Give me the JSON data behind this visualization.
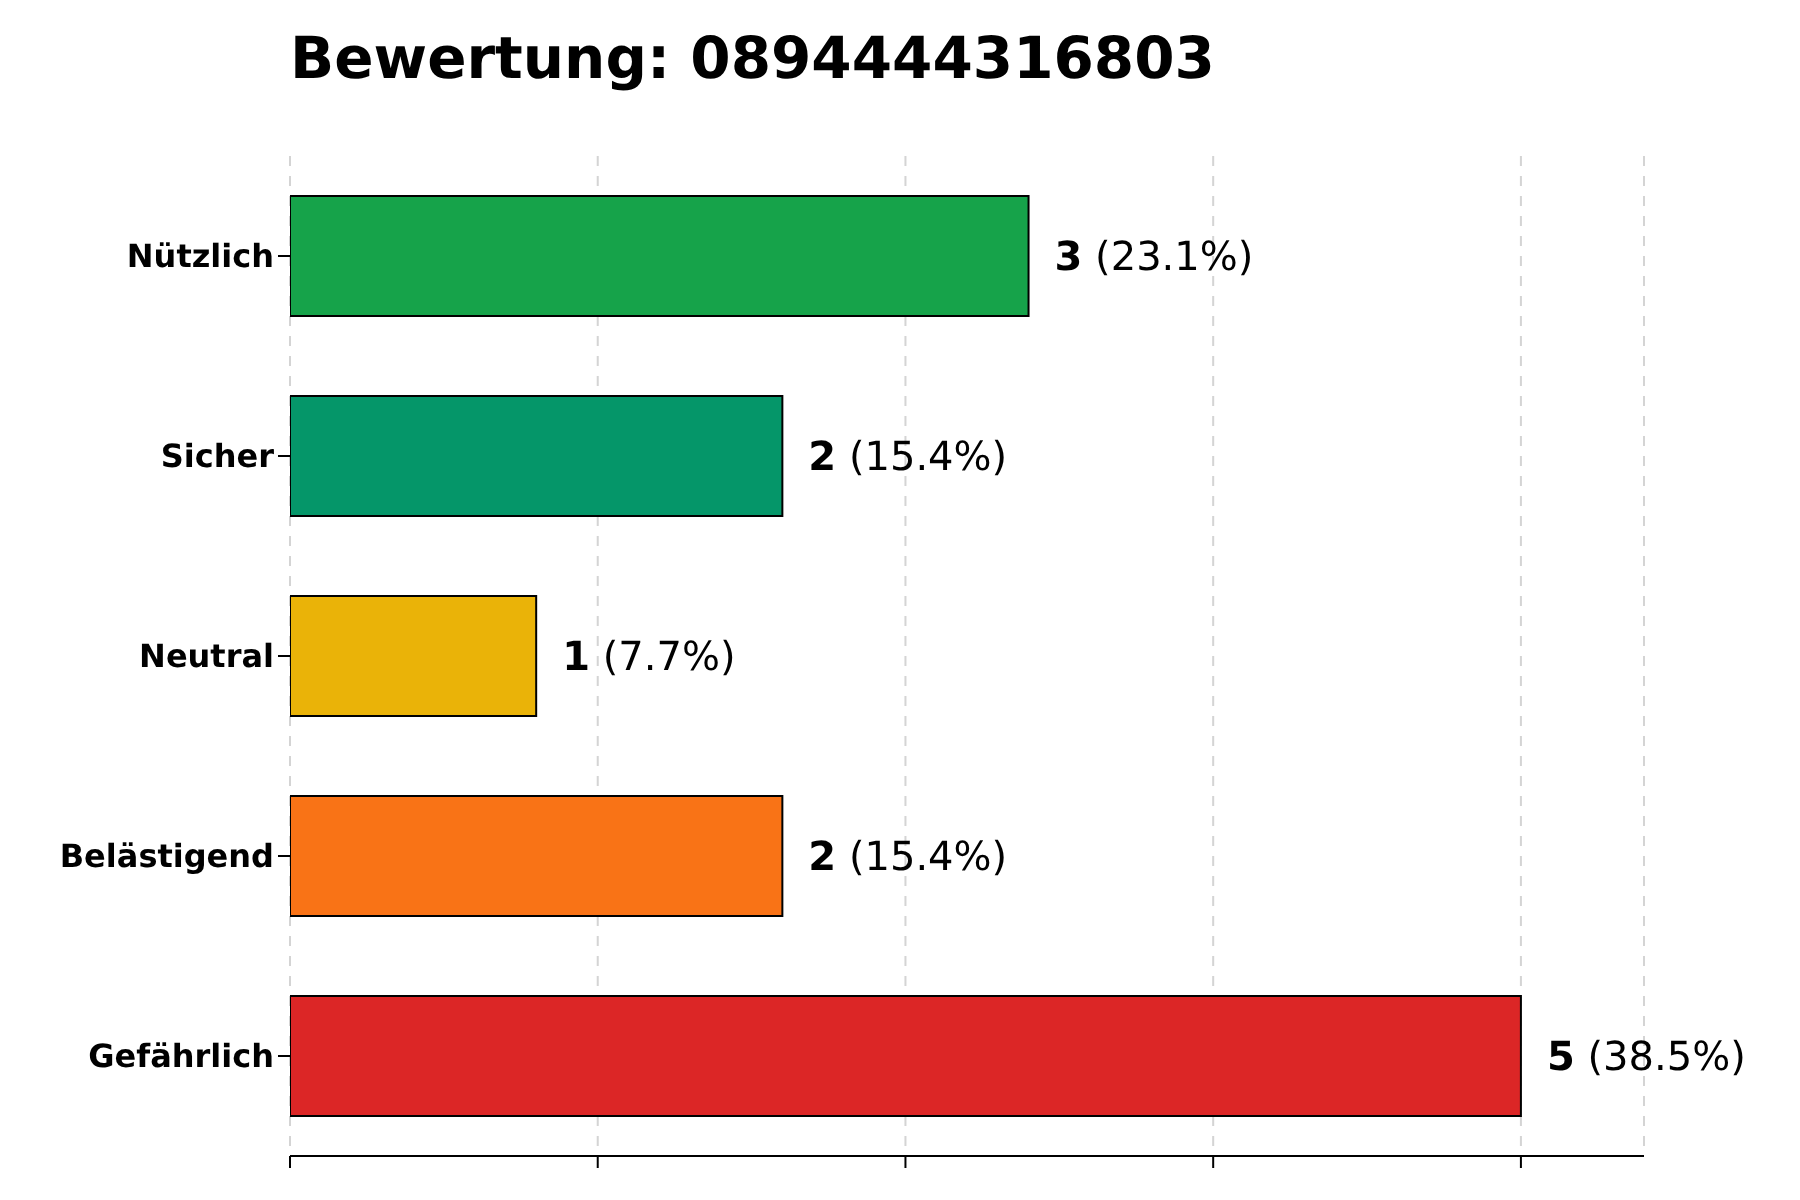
{
  "chart_data": {
    "type": "bar",
    "orientation": "horizontal",
    "title": "Bewertung: 0894444316803",
    "categories": [
      "Nützlich",
      "Sicher",
      "Neutral",
      "Belästigend",
      "Gefährlich"
    ],
    "values": [
      3,
      2,
      1,
      2,
      5
    ],
    "colors": [
      "#16a34a",
      "#059669",
      "#eab308",
      "#f97316",
      "#dc2626"
    ],
    "value_labels": [
      "3 (23.1%)",
      "2 (15.4%)",
      "1 (7.7%)",
      "2 (15.4%)",
      "5 (38.5%)"
    ],
    "xlim": [
      0,
      5.5
    ],
    "xticks": [
      {
        "value": 0,
        "label": null
      },
      {
        "value": 1.25,
        "label": null
      },
      {
        "value": 2.5,
        "label": null
      },
      {
        "value": 3.75,
        "label": null
      },
      {
        "value": 5,
        "label": null
      }
    ],
    "tick_labels": "y",
    "grid": "x",
    "legend": false
  }
}
